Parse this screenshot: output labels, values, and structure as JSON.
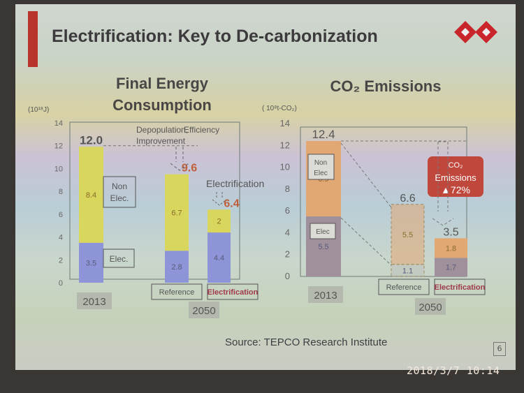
{
  "slide": {
    "title": "Electrification: Key to De-carbonization",
    "source": "Source: TEPCO Research Institute",
    "page_number": "6",
    "timestamp": "2018/3/7  10:14",
    "accent_color": "#b8332c"
  },
  "chart_data": [
    {
      "type": "bar",
      "stacked": true,
      "title": "Final Energy Consumption",
      "ylabel": "(10¹⁸J)",
      "ylim": [
        0,
        14
      ],
      "yticks": [
        0,
        2,
        4,
        6,
        8,
        10,
        12,
        14
      ],
      "categories": [
        "2013",
        "Reference",
        "Electrification"
      ],
      "group_label_2050": "2050",
      "series": [
        {
          "name": "Elec.",
          "values": [
            3.5,
            2.8,
            4.4
          ],
          "color": "#8d95d8"
        },
        {
          "name": "Non Elec.",
          "values": [
            8.4,
            6.7,
            2.0
          ],
          "color": "#d8d65c"
        }
      ],
      "totals": [
        "12.0",
        "9.6",
        "6.4"
      ],
      "annotations": [
        "Depopulation, Efficiency Improvement",
        "Electrification"
      ]
    },
    {
      "type": "bar",
      "stacked": true,
      "title": "CO₂ Emissions",
      "ylabel": "( 10⁸t-CO₂)",
      "ylim": [
        0,
        14
      ],
      "yticks": [
        0,
        2,
        4,
        6,
        8,
        10,
        12,
        14
      ],
      "categories": [
        "2013",
        "Reference",
        "Electrification"
      ],
      "group_label_2050": "2050",
      "series": [
        {
          "name": "Elec",
          "values": [
            5.5,
            1.1,
            1.7
          ],
          "color": "#a0909c"
        },
        {
          "name": "Non Elec",
          "values": [
            6.9,
            5.5,
            1.8
          ],
          "color": "#e2a874"
        }
      ],
      "totals": [
        "12.4",
        "6.6",
        "3.5"
      ],
      "callout": {
        "line1": "CO₂",
        "line2": "Emissions",
        "line3": "▲72%",
        "color": "#c0473c"
      }
    }
  ]
}
